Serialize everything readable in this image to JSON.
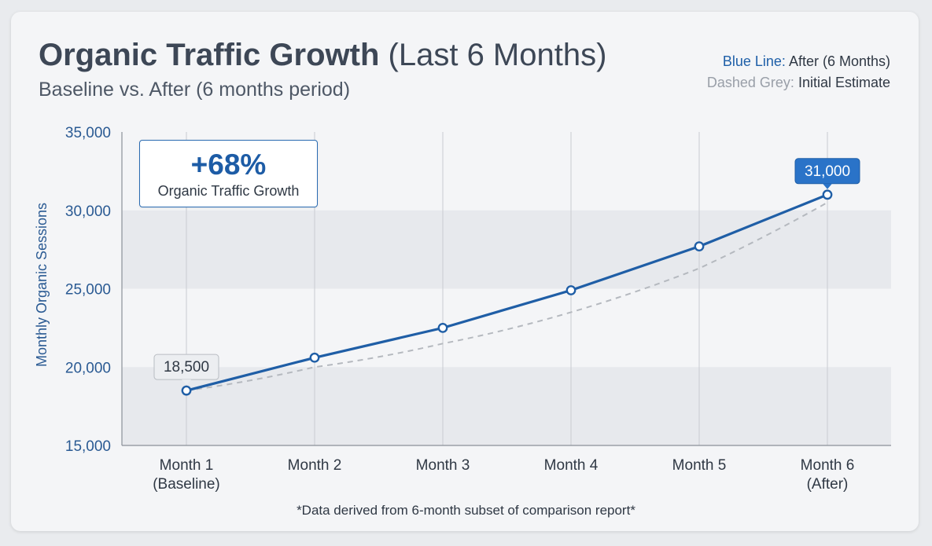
{
  "header": {
    "title_bold": "Organic Traffic Growth",
    "title_rest": "(Last 6 Months)",
    "subtitle": "Baseline vs. After (6 months period)"
  },
  "legend": {
    "blue_key": "Blue Line:",
    "blue_value": "After (6 Months)",
    "grey_key": "Dashed Grey:",
    "grey_value": "Initial Estimate"
  },
  "callout": {
    "value": "+68%",
    "label": "Organic Traffic Growth"
  },
  "footnote": "*Data derived from 6-month subset of comparison report*",
  "colors": {
    "blue_line": "#1f5ea6",
    "dashed_grey": "#b5b9bf",
    "accent_label": "#2a73c8"
  },
  "chart_data": {
    "type": "line",
    "categories": [
      [
        "Month 1",
        "(Baseline)"
      ],
      [
        "Month 2"
      ],
      [
        "Month 3"
      ],
      [
        "Month 4"
      ],
      [
        "Month 5"
      ],
      [
        "Month 6",
        "(After)"
      ]
    ],
    "ylabel": "Monthly Organic Sessions",
    "ylim": [
      15000,
      35000
    ],
    "yticks": [
      35000,
      30000,
      25000,
      20000,
      15000
    ],
    "ytick_labels": [
      "35,000",
      "30,000",
      "25,000",
      "20,000",
      "15,000"
    ],
    "grid": true,
    "series": [
      {
        "name": "After (6 Months)",
        "style": "solid",
        "color": "#1f5ea6",
        "markers": true,
        "values": [
          18500,
          20600,
          22500,
          24900,
          27700,
          31000
        ]
      },
      {
        "name": "Initial Estimate",
        "style": "dashed",
        "color": "#b5b9bf",
        "markers": false,
        "values": [
          18500,
          20000,
          21500,
          23500,
          26300,
          30500
        ]
      }
    ],
    "data_labels": [
      {
        "series": 0,
        "index": 0,
        "text": "18,500",
        "style": "grey"
      },
      {
        "series": 0,
        "index": 5,
        "text": "31,000",
        "style": "blue"
      }
    ]
  }
}
